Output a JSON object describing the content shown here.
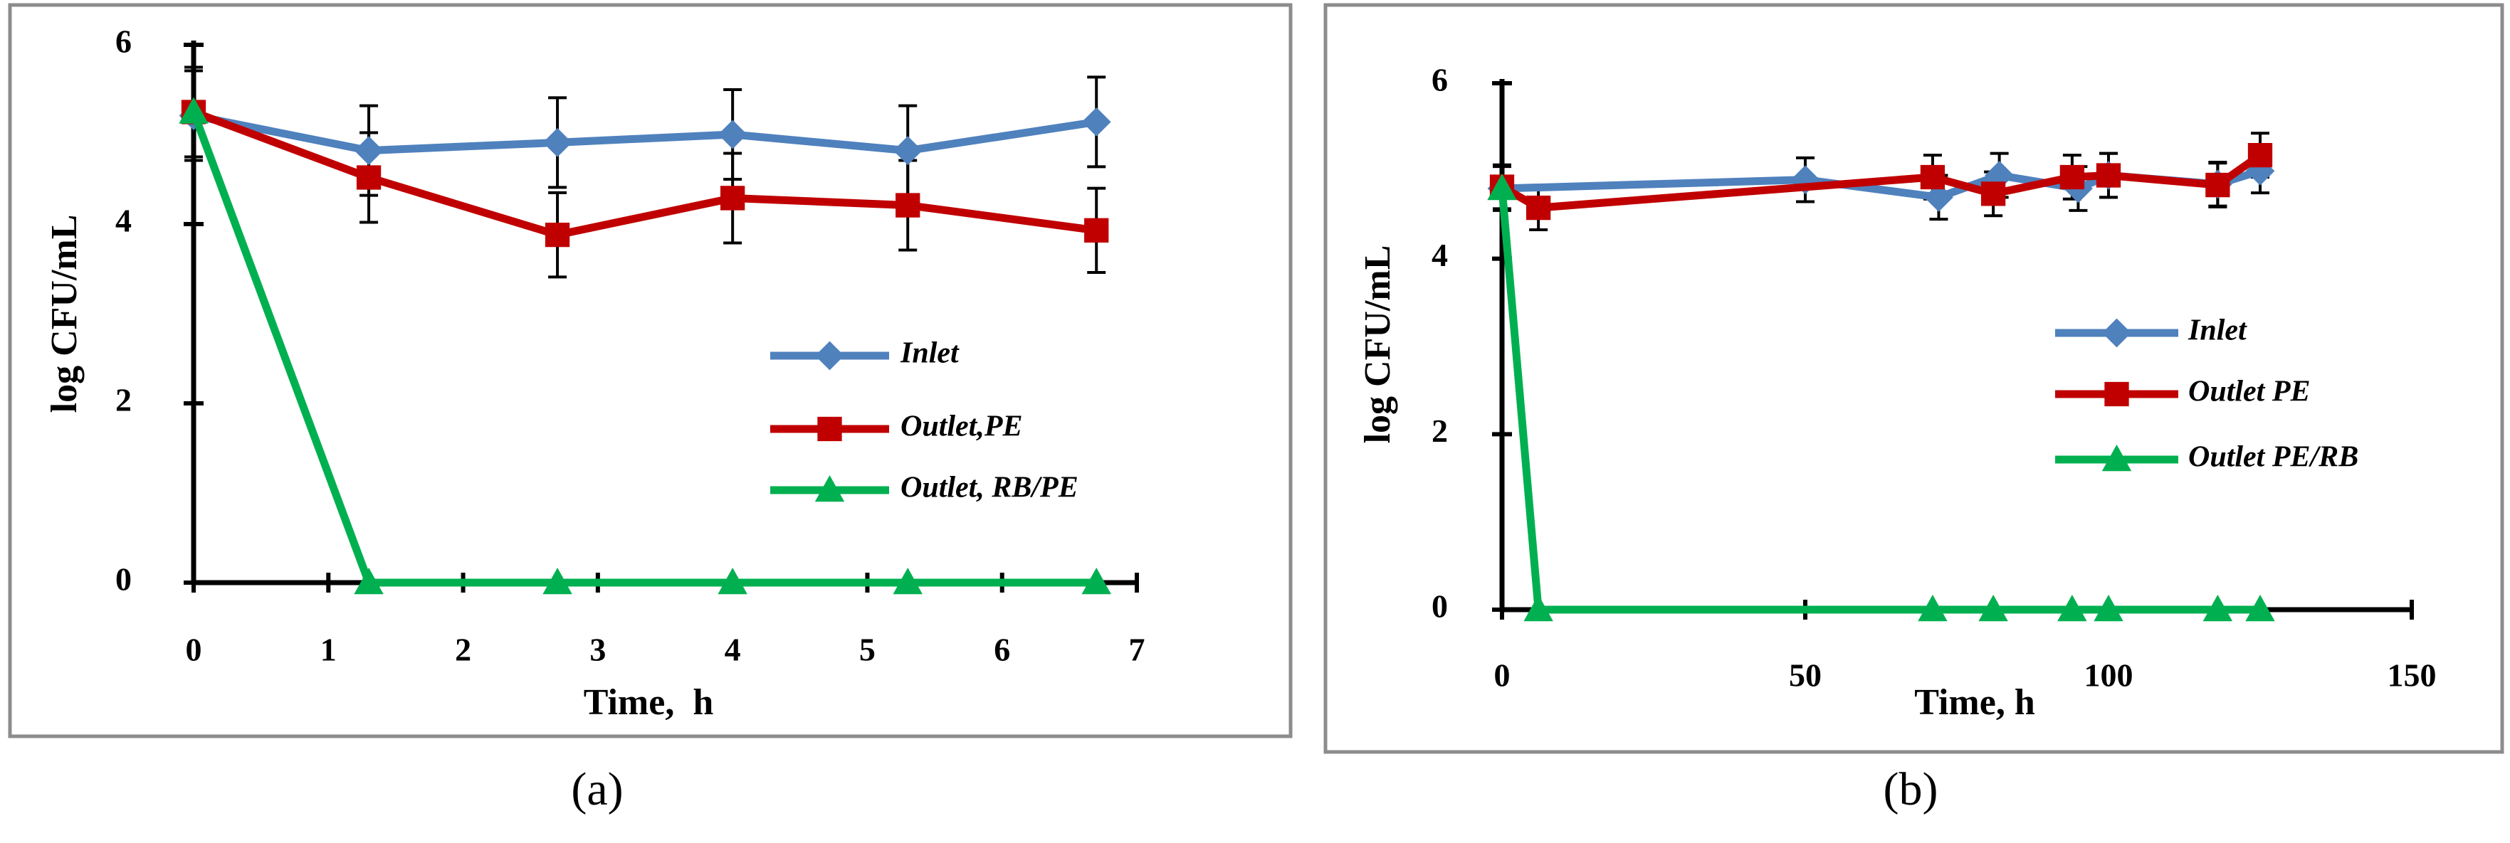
{
  "chart_data": [
    {
      "type": "line",
      "caption": "(a)",
      "x_label": "Time,  h",
      "y_label": "log CFU/mL",
      "xlim": [
        0,
        7
      ],
      "xticks": [
        0,
        1,
        2,
        3,
        4,
        5,
        6,
        7
      ],
      "ylim": [
        0,
        6
      ],
      "yticks": [
        0,
        2,
        4,
        6
      ],
      "grid": false,
      "series": [
        {
          "name": "Inlet",
          "color": "#4f81bd",
          "marker": "diamond",
          "x": [
            0,
            1.3,
            2.7,
            4,
            5.3,
            6.7
          ],
          "values": [
            5.21,
            4.82,
            4.91,
            5.0,
            4.82,
            5.14
          ],
          "errors": [
            0.5,
            0.5,
            0.5,
            0.5,
            0.5,
            0.5
          ]
        },
        {
          "name": "Outlet,PE",
          "color": "#c00000",
          "marker": "square",
          "x": [
            0,
            1.3,
            2.7,
            4,
            5.3,
            6.7
          ],
          "values": [
            5.25,
            4.52,
            3.88,
            4.29,
            4.21,
            3.93
          ],
          "errors": [
            0.5,
            0.5,
            0.47,
            0.5,
            0.5,
            0.47
          ]
        },
        {
          "name": "Outlet, RB/PE",
          "color": "#00b050",
          "marker": "triangle",
          "x": [
            0,
            1.3,
            2.7,
            4,
            5.3,
            6.7
          ],
          "values": [
            5.25,
            0,
            0,
            0,
            0,
            0
          ]
        }
      ]
    },
    {
      "type": "line",
      "caption": "(b)",
      "x_label": "Time, h",
      "y_label": "log CFU/mL",
      "xlim": [
        0,
        150
      ],
      "xticks": [
        0,
        50,
        100,
        150
      ],
      "ylim": [
        0,
        6
      ],
      "yticks": [
        0,
        2,
        4,
        6
      ],
      "grid": false,
      "series": [
        {
          "name": "Inlet",
          "color": "#4f81bd",
          "marker": "diamond",
          "x": [
            0,
            50,
            72,
            82,
            95,
            100,
            118,
            125
          ],
          "values": [
            4.8,
            4.9,
            4.7,
            4.95,
            4.8,
            4.95,
            4.85,
            5.0
          ],
          "errors": [
            0.25,
            0.25,
            0.25,
            0.25,
            0.25,
            0.25,
            0.25,
            0.25
          ]
        },
        {
          "name": "Outlet PE",
          "color": "#c00000",
          "marker": "square",
          "x": [
            0,
            6,
            71,
            81,
            94,
            100,
            118,
            125
          ],
          "values": [
            4.82,
            4.58,
            4.93,
            4.74,
            4.93,
            4.95,
            4.84,
            5.18
          ],
          "errors": [
            0.25,
            0.25,
            0.25,
            0.25,
            0.25,
            0.25,
            0.25,
            0.25
          ]
        },
        {
          "name": "Outlet PE/RB",
          "color": "#00b050",
          "marker": "triangle",
          "x": [
            0,
            6,
            71,
            81,
            94,
            100,
            118,
            125
          ],
          "values": [
            4.8,
            0,
            0,
            0,
            0,
            0,
            0,
            0
          ]
        }
      ]
    }
  ]
}
